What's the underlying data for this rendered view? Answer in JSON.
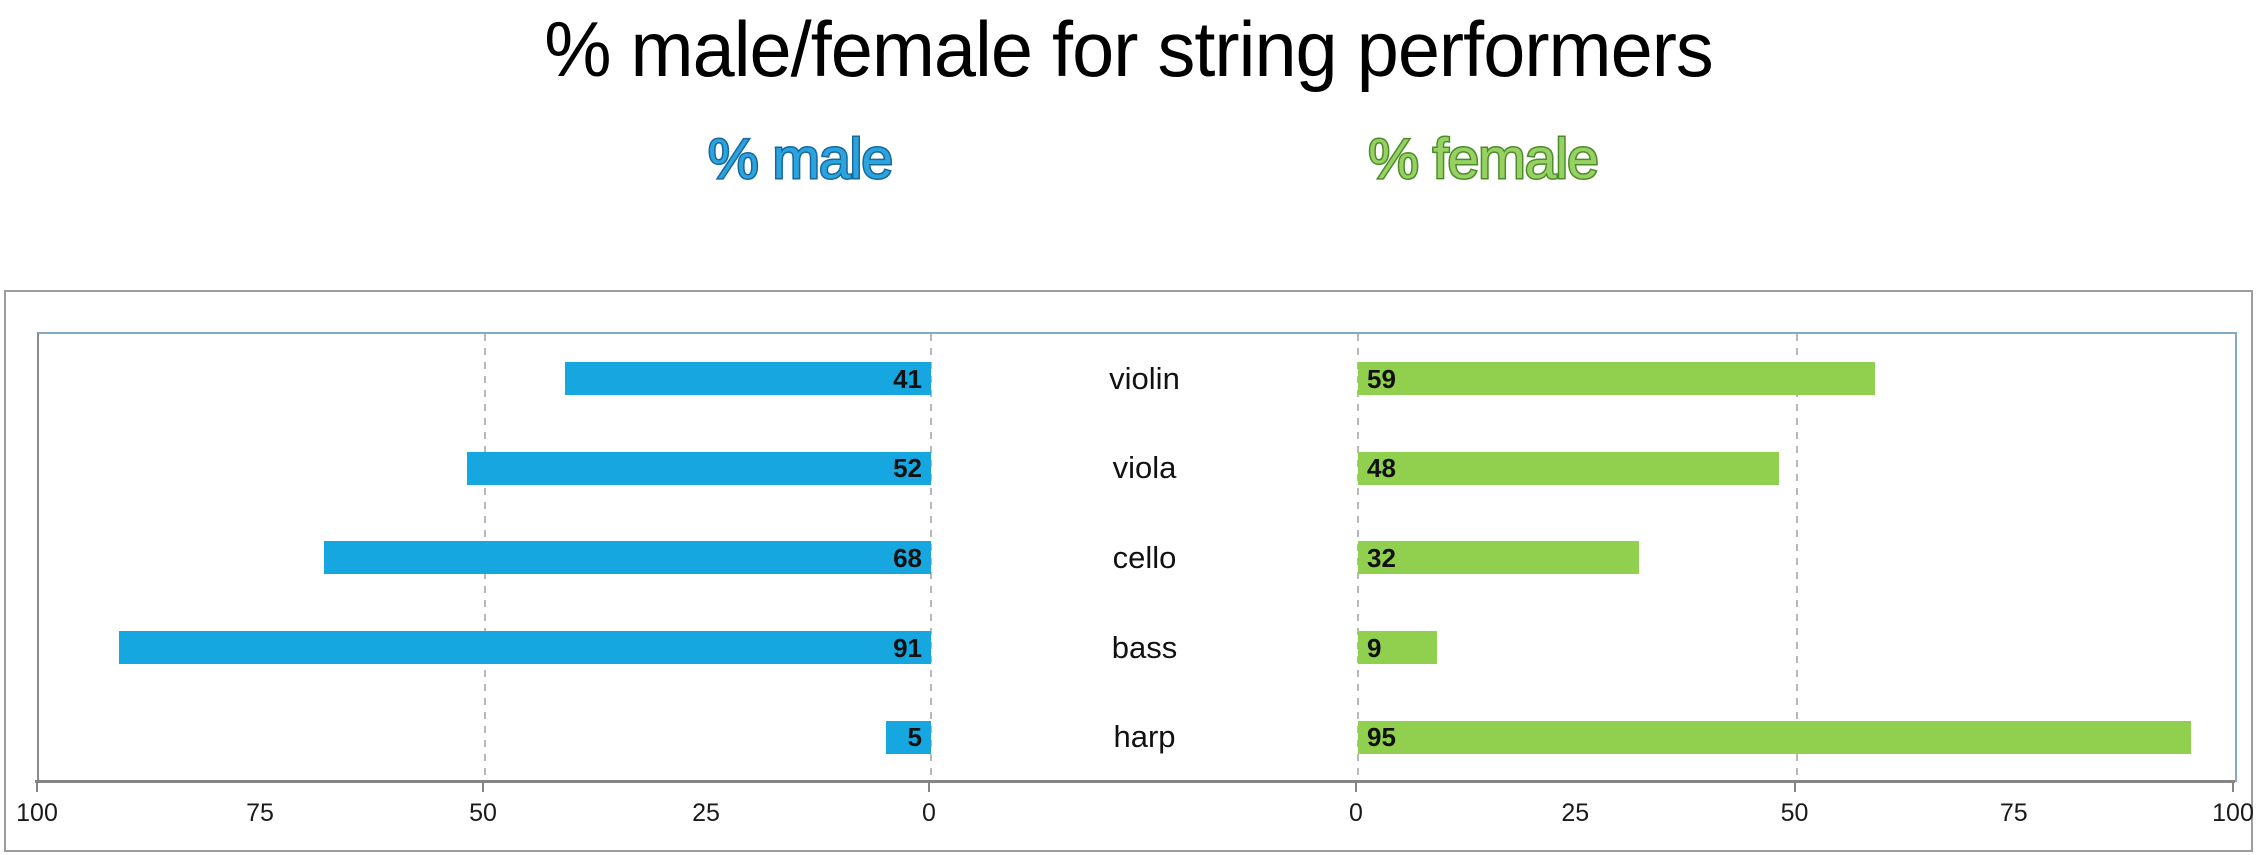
{
  "title": "% male/female for string performers",
  "legend": {
    "male": "% male",
    "female": "% female"
  },
  "colors": {
    "male_bar": "#16a7e0",
    "female_bar": "#91d04f",
    "male_legend_fill": "#2ba4dd",
    "male_legend_stroke": "#16689f",
    "female_legend_fill": "#97d163",
    "female_legend_stroke": "#4c8c28"
  },
  "chart_data": {
    "type": "bar",
    "orientation": "horizontal-diverging",
    "title": "% male/female for string performers",
    "categories": [
      "violin",
      "viola",
      "cello",
      "bass",
      "harp"
    ],
    "series": [
      {
        "name": "% male",
        "side": "left",
        "color": "#16a7e0",
        "values": [
          41,
          52,
          68,
          91,
          5
        ]
      },
      {
        "name": "% female",
        "side": "right",
        "color": "#91d04f",
        "values": [
          59,
          48,
          32,
          9,
          95
        ]
      }
    ],
    "value_labels": "inside-end",
    "axis": {
      "range": [
        0,
        100
      ],
      "ticks_left": [
        100,
        75,
        50,
        25,
        0
      ],
      "ticks_right": [
        0,
        25,
        50,
        75,
        100
      ],
      "gridlines_at": [
        50,
        0
      ],
      "grid_style": "dashed"
    },
    "legend_position": "top"
  }
}
